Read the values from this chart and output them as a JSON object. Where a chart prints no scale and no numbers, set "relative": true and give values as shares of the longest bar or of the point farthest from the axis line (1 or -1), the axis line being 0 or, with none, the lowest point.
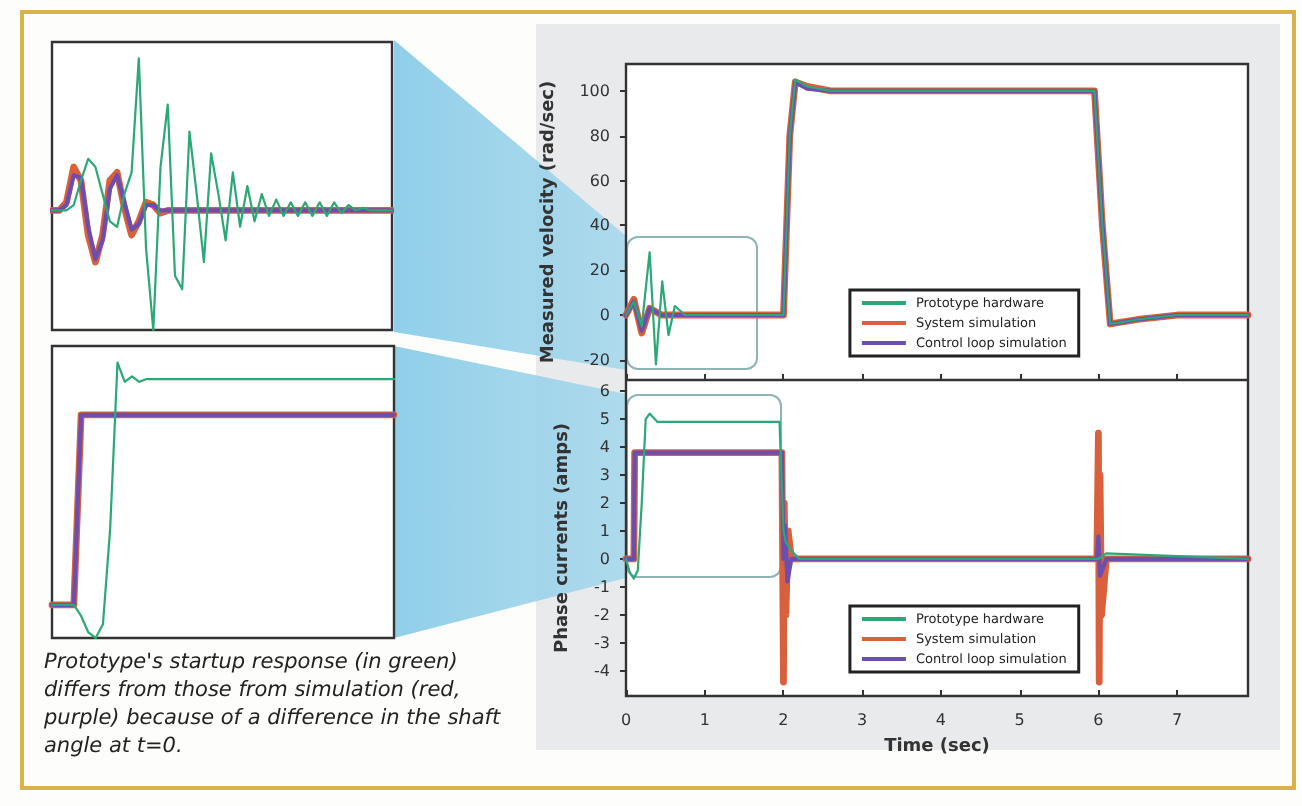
{
  "chart_data": [
    {
      "type": "line",
      "relative": true,
      "tick_labels": false,
      "legend": false,
      "grid": false,
      "categories": [
        null,
        null,
        null,
        null,
        null,
        null,
        null,
        null,
        null,
        null,
        null,
        null,
        null,
        null,
        null,
        null,
        null,
        null,
        null,
        null,
        null,
        null,
        null,
        null,
        null,
        null,
        null,
        null,
        null,
        null,
        null,
        null,
        null,
        null,
        null,
        null,
        null,
        null,
        null,
        null,
        null,
        null,
        null,
        null,
        null,
        null,
        null,
        null
      ],
      "series": [
        {
          "color": "#2aa876",
          "values": [
            0.44,
            0.44,
            0.44,
            0.46,
            0.55,
            0.63,
            0.6,
            0.5,
            0.4,
            0.38,
            0.5,
            0.58,
            1.0,
            0.3,
            0.0,
            0.6,
            0.83,
            0.2,
            0.15,
            0.73,
            0.5,
            0.25,
            0.65,
            0.5,
            0.33,
            0.58,
            0.38,
            0.53,
            0.4,
            0.5,
            0.42,
            0.48,
            0.42,
            0.47,
            0.42,
            0.47,
            0.42,
            0.47,
            0.42,
            0.47,
            0.43,
            0.46,
            0.44,
            0.45,
            0.44,
            0.44,
            0.44,
            0.44
          ]
        },
        {
          "color": "#d9603b",
          "values": [
            0.44,
            0.44,
            0.47,
            0.6,
            0.55,
            0.35,
            0.25,
            0.35,
            0.55,
            0.58,
            0.45,
            0.35,
            0.4,
            0.47,
            0.46,
            0.43,
            0.44,
            0.44,
            0.44,
            0.44,
            0.44,
            0.44,
            0.44,
            0.44,
            0.44,
            0.44,
            0.44,
            0.44,
            0.44,
            0.44,
            0.44,
            0.44,
            0.44,
            0.44,
            0.44,
            0.44,
            0.44,
            0.44,
            0.44,
            0.44,
            0.44,
            0.44,
            0.44,
            0.44,
            0.44,
            0.44,
            0.44,
            0.44
          ]
        },
        {
          "color": "#6a4fb0",
          "values": [
            0.44,
            0.44,
            0.46,
            0.57,
            0.56,
            0.38,
            0.26,
            0.33,
            0.52,
            0.57,
            0.47,
            0.37,
            0.39,
            0.46,
            0.46,
            0.44,
            0.44,
            0.44,
            0.44,
            0.44,
            0.44,
            0.44,
            0.44,
            0.44,
            0.44,
            0.44,
            0.44,
            0.44,
            0.44,
            0.44,
            0.44,
            0.44,
            0.44,
            0.44,
            0.44,
            0.44,
            0.44,
            0.44,
            0.44,
            0.44,
            0.44,
            0.44,
            0.44,
            0.44,
            0.44,
            0.44,
            0.44,
            0.44
          ]
        }
      ]
    },
    {
      "type": "line",
      "relative": true,
      "tick_labels": false,
      "legend": false,
      "grid": false,
      "annotations": [
        "Prototype's startup response (in green) differs from those from simulation (red, purple) because of a difference in the shaft angle at t=0."
      ],
      "categories": [
        null,
        null,
        null,
        null,
        null,
        null,
        null,
        null,
        null,
        null,
        null,
        null,
        null,
        null,
        null,
        null,
        null,
        null,
        null,
        null,
        null,
        null,
        null,
        null,
        null,
        null,
        null,
        null,
        null,
        null,
        null,
        null,
        null,
        null,
        null,
        null,
        null,
        null,
        null,
        null,
        null,
        null,
        null,
        null,
        null,
        null,
        null,
        null
      ],
      "series": [
        {
          "color": "#2aa876",
          "values": [
            0.12,
            0.12,
            0.12,
            0.12,
            0.08,
            0.02,
            0.0,
            0.05,
            0.4,
            1.0,
            0.93,
            0.95,
            0.93,
            0.94,
            0.94,
            0.94,
            0.94,
            0.94,
            0.94,
            0.94,
            0.94,
            0.94,
            0.94,
            0.94,
            0.94,
            0.94,
            0.94,
            0.94,
            0.94,
            0.94,
            0.94,
            0.94,
            0.94,
            0.94,
            0.94,
            0.94,
            0.94,
            0.94,
            0.94,
            0.94,
            0.94,
            0.94,
            0.94,
            0.94,
            0.94,
            0.94,
            0.94,
            0.94
          ]
        },
        {
          "color": "#d9603b",
          "values": [
            0.12,
            0.12,
            0.12,
            0.12,
            0.81,
            0.81,
            0.81,
            0.81,
            0.81,
            0.81,
            0.81,
            0.81,
            0.81,
            0.81,
            0.81,
            0.81,
            0.81,
            0.81,
            0.81,
            0.81,
            0.81,
            0.81,
            0.81,
            0.81,
            0.81,
            0.81,
            0.81,
            0.81,
            0.81,
            0.81,
            0.81,
            0.81,
            0.81,
            0.81,
            0.81,
            0.81,
            0.81,
            0.81,
            0.81,
            0.81,
            0.81,
            0.81,
            0.81,
            0.81,
            0.81,
            0.81,
            0.81,
            0.81
          ]
        },
        {
          "color": "#6a4fb0",
          "values": [
            0.12,
            0.12,
            0.12,
            0.12,
            0.81,
            0.81,
            0.81,
            0.81,
            0.81,
            0.81,
            0.81,
            0.81,
            0.81,
            0.81,
            0.81,
            0.81,
            0.81,
            0.81,
            0.81,
            0.81,
            0.81,
            0.81,
            0.81,
            0.81,
            0.81,
            0.81,
            0.81,
            0.81,
            0.81,
            0.81,
            0.81,
            0.81,
            0.81,
            0.81,
            0.81,
            0.81,
            0.81,
            0.81,
            0.81,
            0.81,
            0.81,
            0.81,
            0.81,
            0.81,
            0.81,
            0.81,
            0.81,
            0.81
          ]
        }
      ]
    },
    {
      "type": "line",
      "ylabel": "Measured velocity (rad/sec)",
      "tick_labels": "y",
      "legend": "bottom",
      "grid": false,
      "xlim": [
        0,
        7.9
      ],
      "xticks": [
        {
          "value": 0,
          "label": null
        },
        {
          "value": 1,
          "label": null
        },
        {
          "value": 2,
          "label": null
        },
        {
          "value": 3,
          "label": null
        },
        {
          "value": 4,
          "label": null
        },
        {
          "value": 5,
          "label": null
        },
        {
          "value": 6,
          "label": null
        },
        {
          "value": 7,
          "label": null
        }
      ],
      "ylim": [
        -29,
        112
      ],
      "yticks": [
        -20,
        0,
        20,
        40,
        60,
        80,
        100
      ],
      "series": [
        {
          "name": "Prototype hardware",
          "color": "#2aa876",
          "x": [
            0,
            0.1,
            0.2,
            0.3,
            0.38,
            0.46,
            0.54,
            0.62,
            0.75,
            2.0,
            2.08,
            2.15,
            2.3,
            2.6,
            5.95,
            6.05,
            6.15,
            6.5,
            7.0,
            7.9
          ],
          "values": [
            0,
            6,
            -5,
            28,
            -22,
            15,
            -9,
            4,
            0,
            0,
            80,
            105,
            102,
            100,
            100,
            40,
            -4,
            -2,
            0,
            0
          ]
        },
        {
          "name": "System simulation",
          "color": "#d9603b",
          "x": [
            0,
            0.1,
            0.2,
            0.3,
            0.45,
            2.0,
            2.08,
            2.15,
            2.3,
            2.6,
            5.95,
            6.05,
            6.15,
            6.5,
            7.0,
            7.9
          ],
          "values": [
            0,
            7,
            -8,
            3,
            0,
            0,
            80,
            104,
            102,
            100,
            100,
            40,
            -4,
            -2,
            0,
            0
          ]
        },
        {
          "name": "Control loop simulation",
          "color": "#6a4fb0",
          "x": [
            0,
            0.1,
            0.2,
            0.3,
            0.45,
            2.0,
            2.08,
            2.15,
            2.3,
            2.6,
            5.95,
            6.05,
            6.15,
            6.5,
            7.0,
            7.9
          ],
          "values": [
            0,
            6,
            -7,
            3,
            0,
            0,
            79,
            104,
            101,
            100,
            100,
            41,
            -4,
            -2,
            0,
            0
          ]
        }
      ]
    },
    {
      "type": "line",
      "xlabel": "Time (sec)",
      "ylabel": "Phase currents (amps)",
      "legend": "bottom",
      "grid": false,
      "xlim": [
        0,
        7.9
      ],
      "xticks": [
        0,
        1,
        2,
        3,
        4,
        5,
        6,
        7
      ],
      "ylim": [
        -4.9,
        6.4
      ],
      "yticks": [
        -4,
        -3,
        -2,
        -1,
        0,
        1,
        2,
        3,
        4,
        5,
        6
      ],
      "series": [
        {
          "name": "Prototype hardware",
          "color": "#2aa876",
          "x": [
            0,
            0.05,
            0.1,
            0.15,
            0.2,
            0.25,
            0.3,
            0.4,
            1.0,
            1.95,
            2.0,
            2.03,
            2.1,
            2.2,
            6.0,
            6.1,
            7.9
          ],
          "values": [
            0,
            -0.5,
            -0.7,
            -0.4,
            2,
            5,
            5.2,
            4.9,
            4.9,
            4.9,
            1,
            0.6,
            0.3,
            0,
            0,
            0.2,
            0
          ]
        },
        {
          "name": "System simulation",
          "color": "#d9603b",
          "x": [
            0,
            0.1,
            0.11,
            1.98,
            2.0,
            2.01,
            2.03,
            2.06,
            2.1,
            5.98,
            6.0,
            6.01,
            6.02,
            6.04,
            6.1,
            7.9
          ],
          "values": [
            0,
            0,
            3.8,
            3.8,
            -4.4,
            2,
            -2,
            1,
            0,
            0,
            4.5,
            -4.4,
            3,
            -2,
            0,
            0
          ]
        },
        {
          "name": "Control loop simulation",
          "color": "#6a4fb0",
          "x": [
            0,
            0.1,
            0.11,
            1.98,
            2.0,
            2.02,
            2.05,
            2.1,
            5.98,
            6.0,
            6.02,
            6.1,
            7.9
          ],
          "values": [
            0,
            0,
            3.8,
            3.8,
            0,
            1.2,
            -0.8,
            0,
            0,
            0.8,
            -0.6,
            0,
            0
          ]
        }
      ]
    }
  ]
}
